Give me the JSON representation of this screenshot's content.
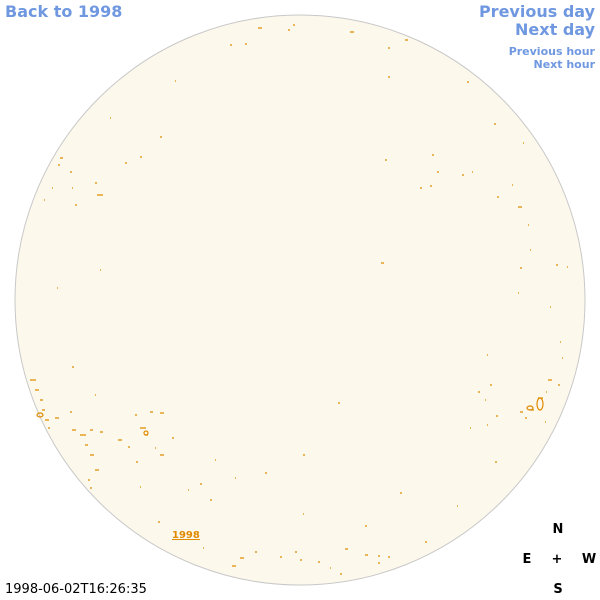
{
  "nav": {
    "back": "Back to 1998",
    "previous_day": "Previous day",
    "next_day": "Next day",
    "previous_hour": "Previous hour",
    "next_hour": "Next hour"
  },
  "disk_label": "1998",
  "timestamp": "1998-06-02T16:26:35",
  "compass": {
    "north": "N",
    "east": "E",
    "center": "+",
    "west": "W",
    "south": "S"
  }
}
